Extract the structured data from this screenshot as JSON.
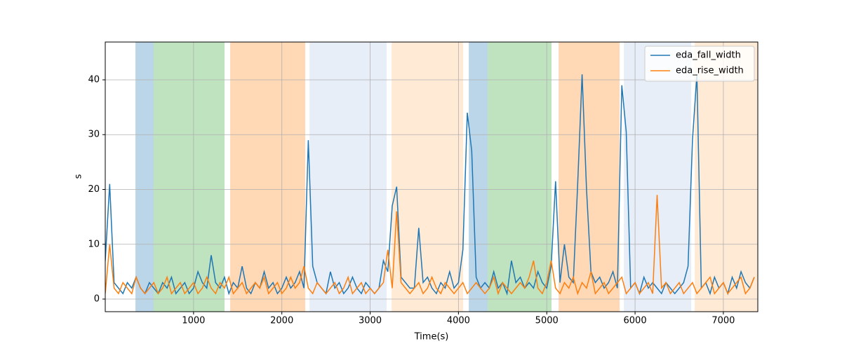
{
  "chart_data": {
    "type": "line",
    "xlabel": "Time(s)",
    "ylabel": "s",
    "xlim": [
      0,
      7390
    ],
    "ylim": [
      -2.3,
      46.9
    ],
    "xticks": [
      1000,
      2000,
      3000,
      4000,
      5000,
      6000,
      7000
    ],
    "yticks": [
      0,
      10,
      20,
      30,
      40
    ],
    "grid": true,
    "legend": "upper right",
    "spans": [
      {
        "start": 342,
        "end": 548,
        "color": "#1f77b4",
        "alpha": 0.3
      },
      {
        "start": 548,
        "end": 1351,
        "color": "#2ca02c",
        "alpha": 0.3
      },
      {
        "start": 1415,
        "end": 2265,
        "color": "#ff7f0e",
        "alpha": 0.3
      },
      {
        "start": 2313,
        "end": 3187,
        "color": "#aec7e8",
        "alpha": 0.3
      },
      {
        "start": 3243,
        "end": 4053,
        "color": "#ffbb78",
        "alpha": 0.3
      },
      {
        "start": 4117,
        "end": 4331,
        "color": "#1f77b4",
        "alpha": 0.3
      },
      {
        "start": 4331,
        "end": 5054,
        "color": "#2ca02c",
        "alpha": 0.3
      },
      {
        "start": 5134,
        "end": 5825,
        "color": "#ff7f0e",
        "alpha": 0.3
      },
      {
        "start": 5873,
        "end": 6636,
        "color": "#aec7e8",
        "alpha": 0.3
      },
      {
        "start": 6676,
        "end": 7390,
        "color": "#ffbb78",
        "alpha": 0.3
      }
    ],
    "x": [
      0,
      50,
      100,
      150,
      200,
      250,
      300,
      350,
      400,
      450,
      500,
      550,
      600,
      650,
      700,
      750,
      800,
      850,
      900,
      950,
      1000,
      1050,
      1100,
      1150,
      1200,
      1250,
      1300,
      1350,
      1400,
      1450,
      1500,
      1550,
      1600,
      1650,
      1700,
      1750,
      1800,
      1850,
      1900,
      1950,
      2000,
      2050,
      2100,
      2150,
      2200,
      2250,
      2300,
      2350,
      2400,
      2450,
      2500,
      2550,
      2600,
      2650,
      2700,
      2750,
      2800,
      2850,
      2900,
      2950,
      3000,
      3050,
      3100,
      3150,
      3200,
      3250,
      3300,
      3350,
      3400,
      3450,
      3500,
      3550,
      3600,
      3650,
      3700,
      3750,
      3800,
      3850,
      3900,
      3950,
      4000,
      4050,
      4100,
      4150,
      4200,
      4250,
      4300,
      4350,
      4400,
      4450,
      4500,
      4550,
      4600,
      4650,
      4700,
      4750,
      4800,
      4850,
      4900,
      4950,
      5000,
      5050,
      5100,
      5150,
      5200,
      5250,
      5300,
      5350,
      5400,
      5450,
      5500,
      5550,
      5600,
      5650,
      5700,
      5750,
      5800,
      5850,
      5900,
      5950,
      6000,
      6050,
      6100,
      6150,
      6200,
      6250,
      6300,
      6350,
      6400,
      6450,
      6500,
      6550,
      6600,
      6650,
      6700,
      6750,
      6800,
      6850,
      6900,
      6950,
      7000,
      7050,
      7100,
      7150,
      7200,
      7250,
      7300,
      7350
    ],
    "series": [
      {
        "name": "eda_fall_width",
        "color": "#1f77b4",
        "values": [
          7,
          21,
          3,
          2,
          1,
          3,
          2,
          4,
          2,
          1,
          3,
          2,
          1,
          3,
          2,
          4,
          1,
          2,
          3,
          1,
          2,
          5,
          3,
          2,
          8,
          3,
          2,
          4,
          1,
          3,
          2,
          6,
          2,
          1,
          3,
          2,
          5,
          2,
          3,
          1,
          2,
          4,
          2,
          3,
          5,
          2,
          29,
          6,
          3,
          2,
          1,
          5,
          2,
          3,
          1,
          2,
          4,
          2,
          1,
          3,
          2,
          1,
          2,
          7,
          5,
          17,
          20.5,
          4,
          3,
          2,
          2,
          13,
          3,
          4,
          2,
          1,
          3,
          2,
          5,
          2,
          3,
          9,
          34,
          27,
          4,
          2,
          3,
          2,
          5,
          2,
          3,
          1,
          7,
          3,
          4,
          2,
          3,
          2,
          5,
          3,
          2,
          6,
          21.5,
          3,
          10,
          4,
          3,
          21,
          41,
          20,
          5,
          3,
          4,
          2,
          3,
          5,
          2,
          39,
          30.5,
          2,
          3,
          1,
          4,
          2,
          3,
          2,
          1,
          3,
          2,
          1,
          2,
          3,
          6,
          29,
          41,
          2,
          3,
          1,
          4,
          2,
          3,
          1,
          4,
          2,
          5,
          3,
          2,
          4
        ]
      },
      {
        "name": "eda_rise_width",
        "color": "#ff7f0e",
        "values": [
          1,
          10,
          2,
          1,
          3,
          2,
          1,
          4,
          2,
          1,
          2,
          3,
          1,
          2,
          4,
          1,
          2,
          3,
          1,
          2,
          3,
          1,
          2,
          4,
          2,
          1,
          3,
          2,
          4,
          1,
          2,
          3,
          1,
          2,
          3,
          2,
          4,
          1,
          2,
          3,
          1,
          2,
          4,
          2,
          3,
          6,
          2,
          1,
          3,
          2,
          1,
          2,
          3,
          1,
          2,
          4,
          1,
          2,
          3,
          1,
          2,
          1,
          2,
          3,
          9,
          2,
          16,
          3,
          2,
          1,
          2,
          3,
          1,
          2,
          4,
          2,
          1,
          3,
          2,
          1,
          2,
          3,
          1,
          2,
          3,
          2,
          1,
          2,
          4,
          1,
          3,
          2,
          1,
          2,
          3,
          2,
          4,
          7,
          2,
          1,
          3,
          7,
          2,
          1,
          3,
          2,
          4,
          1,
          3,
          2,
          5,
          1,
          2,
          3,
          1,
          2,
          3,
          4,
          1,
          2,
          3,
          1,
          2,
          3,
          1,
          19,
          2,
          3,
          1,
          2,
          3,
          1,
          2,
          3,
          1,
          2,
          3,
          4,
          1,
          2,
          3,
          1,
          2,
          3,
          4,
          1,
          2,
          4
        ]
      }
    ]
  }
}
